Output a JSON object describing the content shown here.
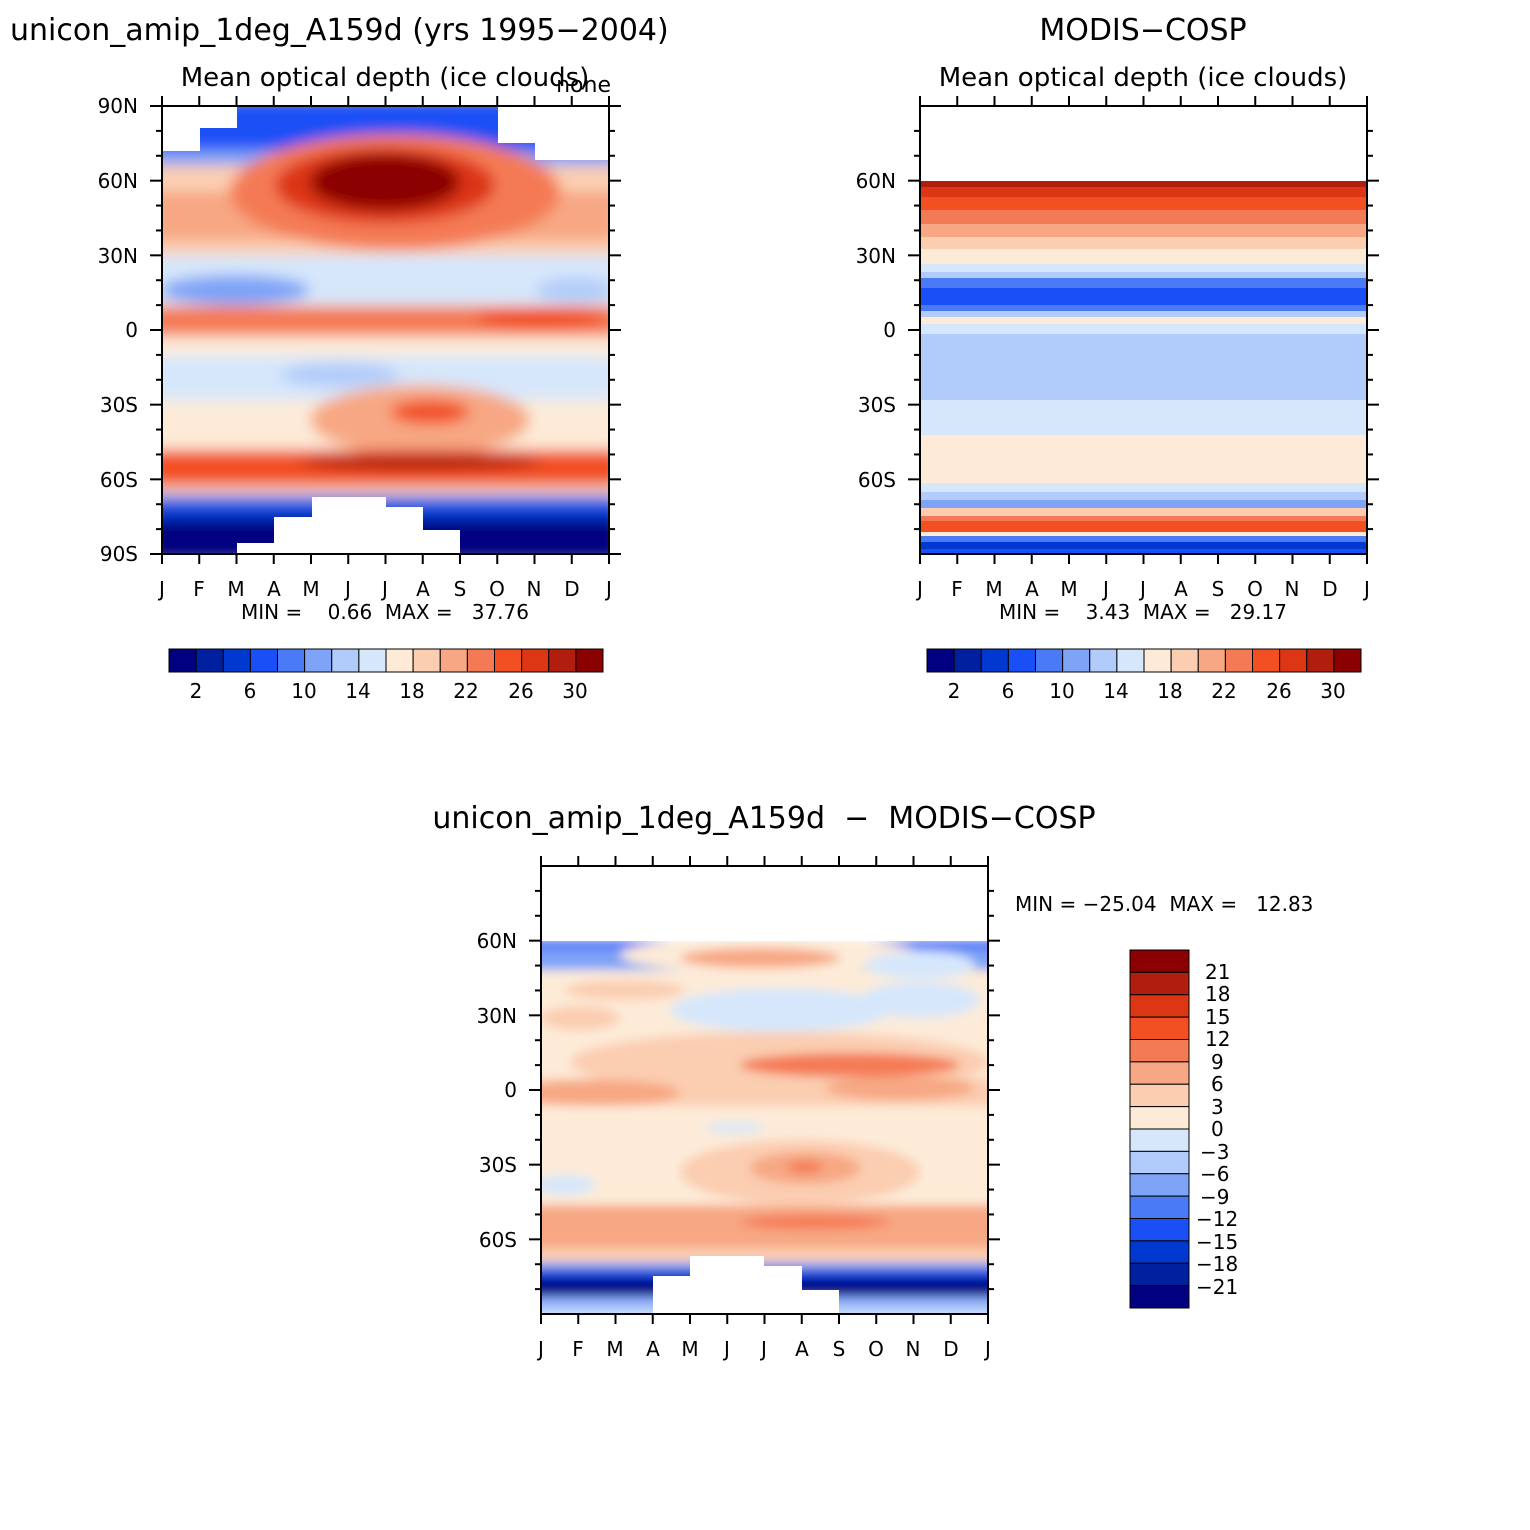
{
  "palette": [
    "#000080",
    "#0020a0",
    "#0038d0",
    "#1a4ff5",
    "#4a7af5",
    "#7ea3f7",
    "#b1ccfa",
    "#d6e7fb",
    "#fdebd8",
    "#fbcdb1",
    "#f7a783",
    "#f47a55",
    "#f24f22",
    "#dc3614",
    "#b11e0d",
    "#8b0000"
  ],
  "panels": {
    "model": {
      "title": "unicon_amip_1deg_A159d (yrs 1995−2004)",
      "subtitle": "Mean optical depth (ice clouds)",
      "corner_label": "none",
      "stats": "MIN =    0.66  MAX =   37.76"
    },
    "obs": {
      "title": "MODIS−COSP",
      "subtitle": "Mean optical depth (ice clouds)",
      "stats": "MIN =    3.43  MAX =   29.17"
    },
    "diff": {
      "title": "unicon_amip_1deg_A159d  −  MODIS−COSP",
      "stats": "MIN = −25.04  MAX =   12.83"
    }
  },
  "chart_data": [
    {
      "type": "heatmap",
      "id": "model",
      "title": "unicon_amip_1deg_A159d (yrs 1995−2004)",
      "subtitle": "Mean optical depth (ice clouds)",
      "x_labels": [
        "J",
        "F",
        "M",
        "A",
        "M",
        "J",
        "J",
        "A",
        "S",
        "O",
        "N",
        "D",
        "J"
      ],
      "y_labels": [
        "90N",
        "60N",
        "30N",
        "0",
        "30S",
        "60S",
        "90S"
      ],
      "ylim": [
        -90,
        90
      ],
      "colorbar_levels": [
        1,
        3,
        5,
        7,
        9,
        11,
        13,
        15,
        17,
        19,
        21,
        23,
        25,
        27,
        29,
        31
      ],
      "colorbar_labels": [
        "2",
        "6",
        "10",
        "14",
        "18",
        "22",
        "26",
        "30"
      ],
      "min": 0.66,
      "max": 37.76
    },
    {
      "type": "heatmap",
      "id": "obs",
      "title": "MODIS−COSP",
      "subtitle": "Mean optical depth (ice clouds)",
      "x_labels": [
        "J",
        "F",
        "M",
        "A",
        "M",
        "J",
        "J",
        "A",
        "S",
        "O",
        "N",
        "D",
        "J"
      ],
      "y_labels": [
        "60N",
        "30N",
        "0",
        "30S",
        "60S"
      ],
      "ylim": [
        -90,
        90
      ],
      "colorbar_levels": [
        1,
        3,
        5,
        7,
        9,
        11,
        13,
        15,
        17,
        19,
        21,
        23,
        25,
        27,
        29,
        31
      ],
      "colorbar_labels": [
        "2",
        "6",
        "10",
        "14",
        "18",
        "22",
        "26",
        "30"
      ],
      "min": 3.43,
      "max": 29.17
    },
    {
      "type": "heatmap",
      "id": "diff",
      "title": "unicon_amip_1deg_A159d  −  MODIS−COSP",
      "x_labels": [
        "J",
        "F",
        "M",
        "A",
        "M",
        "J",
        "J",
        "A",
        "S",
        "O",
        "N",
        "D",
        "J"
      ],
      "y_labels": [
        "60N",
        "30N",
        "0",
        "30S",
        "60S"
      ],
      "ylim": [
        -90,
        90
      ],
      "colorbar_labels": [
        "21",
        "18",
        "15",
        "12",
        "9",
        "6",
        "3",
        "0",
        "−3",
        "−6",
        "−9",
        "−12",
        "−15",
        "−18",
        "−21"
      ],
      "min": -25.04,
      "max": 12.83
    }
  ]
}
